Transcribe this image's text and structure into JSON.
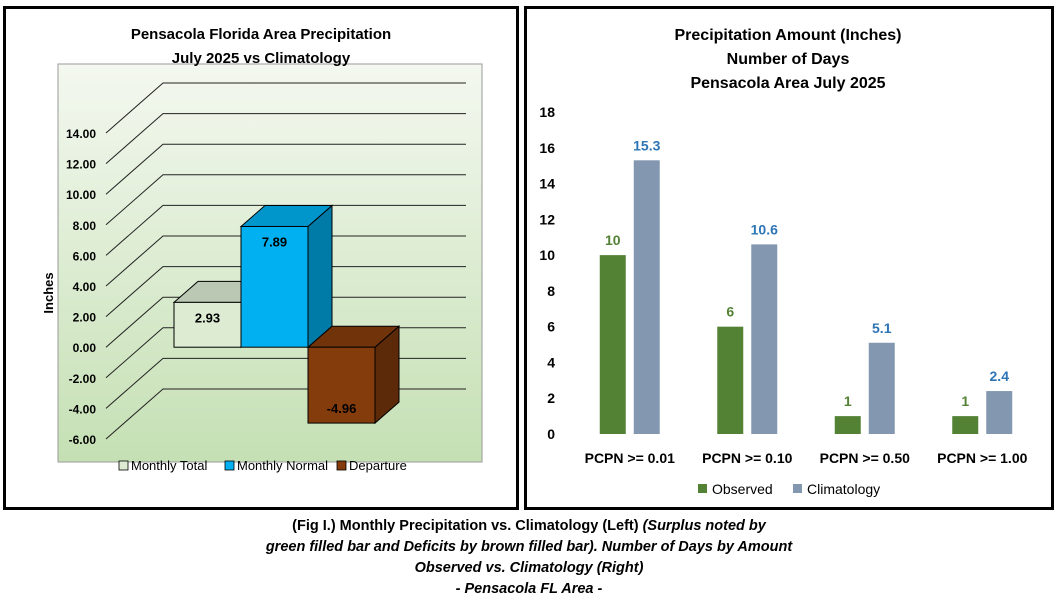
{
  "colors": {
    "monthly_total": "#dcebd2",
    "monthly_normal": "#00b0f0",
    "departure": "#843c0c",
    "observed": "#548235",
    "climatology": "#8497b0",
    "observed_label": "#548235",
    "climatology_label": "#2e75b6",
    "wall_top": "#f4f8f0",
    "wall_bottom": "#c5e0b4"
  },
  "caption": {
    "line1_a": "(Fig I.) Monthly Precipitation vs. Climatology (Left) ",
    "line1_b": "(Surplus noted by",
    "line2": "green filled bar and Deficits by brown filled bar). Number of Days by Amount",
    "line3": "Observed vs. Climatology (Right)",
    "line4": "- Pensacola FL Area -"
  },
  "chart_data": [
    {
      "type": "bar",
      "variant": "3d",
      "title": "Pensacola Florida Area Precipitation",
      "subtitle": "July 2025 vs Climatology",
      "ylabel": "Inches",
      "ylim": [
        -6,
        14
      ],
      "yticks": [
        "14.00",
        "12.00",
        "10.00",
        "8.00",
        "6.00",
        "4.00",
        "2.00",
        "0.00",
        "-2.00",
        "-4.00",
        "-6.00"
      ],
      "grid": true,
      "legend_position": "bottom",
      "series": [
        {
          "name": "Monthly Total",
          "values": [
            2.93
          ],
          "label": "2.93"
        },
        {
          "name": "Monthly Normal",
          "values": [
            7.89
          ],
          "label": "7.89"
        },
        {
          "name": "Departure",
          "values": [
            -4.96
          ],
          "label": "-4.96"
        }
      ]
    },
    {
      "type": "bar",
      "title": "Precipitation Amount (Inches)",
      "subtitle": "Number of Days",
      "subtitle2": "Pensacola Area July 2025",
      "categories": [
        "PCPN >= 0.01",
        "PCPN >= 0.10",
        "PCPN >= 0.50",
        "PCPN >= 1.00"
      ],
      "ylim": [
        0,
        18
      ],
      "yticks": [
        "0",
        "2",
        "4",
        "6",
        "8",
        "10",
        "12",
        "14",
        "16",
        "18"
      ],
      "grid": false,
      "legend_position": "bottom",
      "series": [
        {
          "name": "Observed",
          "values": [
            10,
            6,
            1,
            1
          ],
          "labels": [
            "10",
            "6",
            "1",
            "1"
          ]
        },
        {
          "name": "Climatology",
          "values": [
            15.3,
            10.6,
            5.1,
            2.4
          ],
          "labels": [
            "15.3",
            "10.6",
            "5.1",
            "2.4"
          ]
        }
      ]
    }
  ]
}
